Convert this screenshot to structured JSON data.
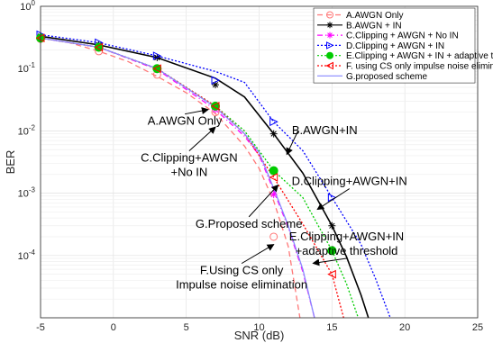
{
  "chart_data": {
    "type": "line",
    "xlabel": "SNR (dB)",
    "ylabel": "BER",
    "xlim": [
      -5,
      25
    ],
    "ylim": [
      1e-05,
      1
    ],
    "yscale": "log",
    "grid": true,
    "legend_position": "top-right",
    "x_ticks": [
      "-5",
      "0",
      "5",
      "10",
      "15",
      "20",
      "25"
    ],
    "y_ticks": [
      {
        "base": "10",
        "exp": "0",
        "value": 1
      },
      {
        "base": "10",
        "exp": "-1",
        "value": 0.1
      },
      {
        "base": "10",
        "exp": "-2",
        "value": 0.01
      },
      {
        "base": "10",
        "exp": "-3",
        "value": 0.001
      },
      {
        "base": "10",
        "exp": "-4",
        "value": 0.0001
      }
    ],
    "series": [
      {
        "name": "A.AWGN Only",
        "color": "#ff7777",
        "dash": "6,4",
        "marker": "circle",
        "x": [
          -5,
          -3,
          -1,
          1,
          3,
          5,
          7,
          9,
          10,
          11,
          12,
          12.8
        ],
        "y": [
          0.31,
          0.26,
          0.19,
          0.13,
          0.075,
          0.041,
          0.019,
          0.0057,
          0.0025,
          0.00075,
          0.00014,
          1e-05
        ],
        "marker_x": [
          -5,
          -1,
          3,
          7,
          11
        ],
        "marker_y": [
          0.3,
          0.19,
          0.08,
          0.02,
          0.0002
        ]
      },
      {
        "name": "B.AWGN + IN",
        "color": "#000000",
        "dash": "",
        "marker": "star",
        "x": [
          -5,
          -1,
          3,
          7,
          9,
          11,
          13,
          15,
          16,
          17,
          17.5
        ],
        "y": [
          0.33,
          0.24,
          0.15,
          0.07,
          0.035,
          0.009,
          0.0021,
          0.0003,
          9.5e-05,
          2.3e-05,
          1e-05
        ],
        "marker_x": [
          -5,
          -1,
          3,
          7,
          11,
          15
        ],
        "marker_y": [
          0.33,
          0.24,
          0.15,
          0.055,
          0.009,
          0.0003
        ]
      },
      {
        "name": "C.Clipping + AWGN + No IN",
        "color": "#ff00ff",
        "dash": "6,3,1,3",
        "marker": "star",
        "x": [
          -5,
          -1,
          3,
          7,
          9,
          10,
          11,
          12,
          13,
          13.8
        ],
        "y": [
          0.31,
          0.22,
          0.097,
          0.022,
          0.0082,
          0.0041,
          0.0011,
          0.00028,
          5.5e-05,
          1e-05
        ],
        "marker_x": [
          -5,
          -1,
          3,
          7,
          11
        ],
        "marker_y": [
          0.31,
          0.22,
          0.097,
          0.022,
          0.00095
        ]
      },
      {
        "name": "D.Clipping + AWGN + IN",
        "color": "#0000ff",
        "dash": "2,2",
        "marker": "triangle-right",
        "x": [
          -5,
          -1,
          3,
          7,
          9,
          11,
          13,
          15,
          17,
          18,
          19
        ],
        "y": [
          0.35,
          0.26,
          0.16,
          0.09,
          0.06,
          0.014,
          0.0048,
          0.00085,
          0.00015,
          4.2e-05,
          1e-05
        ],
        "marker_x": [
          -5,
          -1,
          3,
          7,
          11,
          15
        ],
        "marker_y": [
          0.35,
          0.26,
          0.16,
          0.065,
          0.014,
          0.00085
        ]
      },
      {
        "name": "E.Clipping + AWGN + IN + adaptive threshold",
        "color": "#00cc00",
        "dash": "2,2",
        "marker": "filled-circle",
        "x": [
          -5,
          -1,
          3,
          7,
          9,
          11,
          13,
          15,
          16,
          16.8
        ],
        "y": [
          0.31,
          0.22,
          0.1,
          0.025,
          0.01,
          0.0023,
          0.00085,
          0.00012,
          3.5e-05,
          1e-05
        ],
        "marker_x": [
          -5,
          -1,
          3,
          7,
          11,
          15
        ],
        "marker_y": [
          0.31,
          0.22,
          0.1,
          0.025,
          0.0023,
          0.00012
        ]
      },
      {
        "name": "F. using CS only impulse noise elimination",
        "color": "#ff0000",
        "dash": "2,2",
        "marker": "triangle-left",
        "x": [
          -5,
          -1,
          3,
          7,
          9,
          11,
          13,
          15,
          15.8
        ],
        "y": [
          0.31,
          0.22,
          0.1,
          0.025,
          0.009,
          0.0018,
          0.00032,
          5e-05,
          1e-05
        ],
        "marker_x": [
          -5,
          -1,
          3,
          7,
          11,
          15
        ],
        "marker_y": [
          0.31,
          0.22,
          0.1,
          0.025,
          0.0018,
          5e-05
        ]
      },
      {
        "name": "G.proposed scheme",
        "color": "#8888ff",
        "dash": "",
        "marker": "none",
        "x": [
          -5,
          -1,
          3,
          7,
          9,
          10,
          11,
          12,
          13,
          13.8
        ],
        "y": [
          0.31,
          0.22,
          0.1,
          0.024,
          0.009,
          0.0045,
          0.0012,
          0.0003,
          6e-05,
          1e-05
        ],
        "marker_x": [],
        "marker_y": []
      }
    ],
    "annotations": [
      {
        "lines": [
          "A.AWGN Only"
        ],
        "text_x": 4.9,
        "text_y": 0.0125,
        "arrow_to_x": 6.5,
        "arrow_to_y": 0.022
      },
      {
        "lines": [
          "C.Clipping+AWGN",
          "+No IN"
        ],
        "text_x": 5.2,
        "text_y": 0.0032,
        "arrow_to_x": 7.0,
        "arrow_to_y": 0.0115
      },
      {
        "lines": [
          "B.AWGN+IN"
        ],
        "text_x": 14.5,
        "text_y": 0.0088,
        "arrow_to_x": 11.9,
        "arrow_to_y": 0.0042
      },
      {
        "lines": [
          "D.Clipping+AWGN+IN"
        ],
        "text_x": 16.2,
        "text_y": 0.00135,
        "arrow_to_x": 14.0,
        "arrow_to_y": 0.00055
      },
      {
        "lines": [
          "E.Clipping+AWGN+IN",
          "+adaptive threshold"
        ],
        "text_x": 16.0,
        "text_y": 0.000175,
        "arrow_to_x": 13.7,
        "arrow_to_y": 7.5e-05
      },
      {
        "lines": [
          "G.Proposed scheme"
        ],
        "text_x": 9.3,
        "text_y": 0.00028,
        "arrow_to_x": 11.3,
        "arrow_to_y": 0.00135
      },
      {
        "lines": [
          "F.Using CS only",
          "Impulse noise elimination"
        ],
        "text_x": 8.8,
        "text_y": 5e-05,
        "arrow_to_x": 11.0,
        "arrow_to_y": 0.00015
      }
    ]
  }
}
